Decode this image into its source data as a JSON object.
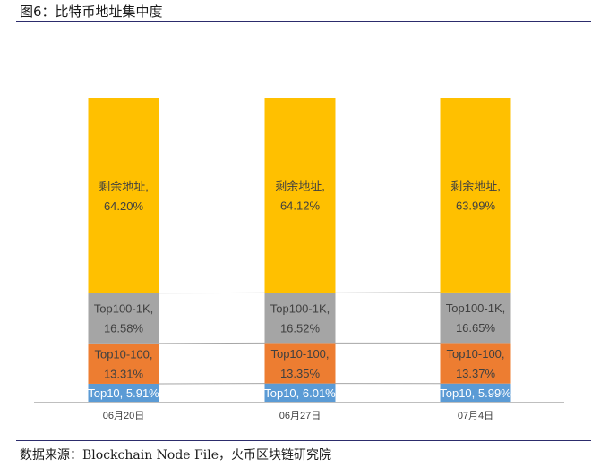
{
  "header": {
    "title": "图6：比特币地址集中度"
  },
  "footer": {
    "source": "数据来源：Blockchain Node File，火币区块链研究院"
  },
  "colors": {
    "top10": "#5b9bd5",
    "top10_100": "#ed7d31",
    "top100_1k": "#a5a5a5",
    "remaining": "#ffc000",
    "label_dark": "#404040",
    "label_light": "#ffffff"
  },
  "chart_data": {
    "type": "bar",
    "stacked": true,
    "percent": true,
    "categories": [
      "06月20日",
      "06月27日",
      "07月4日"
    ],
    "ylim": [
      0,
      100
    ],
    "series": [
      {
        "name": "Top10",
        "color_key": "top10",
        "values": [
          5.91,
          6.01,
          5.99
        ],
        "labels": [
          "Top10, 5.91%",
          "Top10, 6.01%",
          "Top10, 5.99%"
        ]
      },
      {
        "name": "Top10-100",
        "color_key": "top10_100",
        "values": [
          13.31,
          13.35,
          13.37
        ],
        "labels": [
          "Top10-100,\n13.31%",
          "Top10-100,\n13.35%",
          "Top10-100,\n13.37%"
        ]
      },
      {
        "name": "Top100-1K",
        "color_key": "top100_1k",
        "values": [
          16.58,
          16.52,
          16.65
        ],
        "labels": [
          "Top100-1K,\n16.58%",
          "Top100-1K,\n16.52%",
          "Top100-1K,\n16.65%"
        ]
      },
      {
        "name": "剩余地址",
        "color_key": "remaining",
        "values": [
          64.2,
          64.12,
          63.99
        ],
        "labels": [
          "剩余地址,\n64.20%",
          "剩余地址,\n64.12%",
          "剩余地址,\n63.99%"
        ]
      }
    ]
  }
}
